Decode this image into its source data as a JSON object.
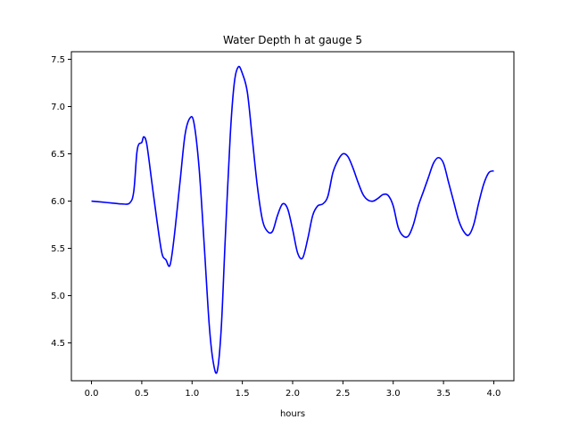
{
  "chart_data": {
    "type": "line",
    "title": "Water Depth h at gauge 5",
    "xlabel": "hours",
    "ylabel": "",
    "xlim": [
      -0.2,
      4.2
    ],
    "ylim": [
      4.1,
      7.58
    ],
    "xticks": [
      0.0,
      0.5,
      1.0,
      1.5,
      2.0,
      2.5,
      3.0,
      3.5,
      4.0
    ],
    "xtick_labels": [
      "0.0",
      "0.5",
      "1.0",
      "1.5",
      "2.0",
      "2.5",
      "3.0",
      "3.5",
      "4.0"
    ],
    "yticks": [
      4.5,
      5.0,
      5.5,
      6.0,
      6.5,
      7.0,
      7.5
    ],
    "ytick_labels": [
      "4.5",
      "5.0",
      "5.5",
      "6.0",
      "6.5",
      "7.0",
      "7.5"
    ],
    "grid": false,
    "series": [
      {
        "color": "#0000ff",
        "x": [
          0.0,
          0.1,
          0.2,
          0.3,
          0.38,
          0.42,
          0.45,
          0.47,
          0.5,
          0.52,
          0.55,
          0.6,
          0.65,
          0.7,
          0.74,
          0.78,
          0.82,
          0.88,
          0.93,
          0.98,
          1.02,
          1.07,
          1.12,
          1.17,
          1.21,
          1.25,
          1.29,
          1.33,
          1.38,
          1.42,
          1.46,
          1.5,
          1.55,
          1.6,
          1.65,
          1.7,
          1.75,
          1.8,
          1.85,
          1.9,
          1.95,
          2.0,
          2.05,
          2.1,
          2.15,
          2.2,
          2.25,
          2.3,
          2.35,
          2.4,
          2.45,
          2.5,
          2.55,
          2.6,
          2.65,
          2.7,
          2.75,
          2.8,
          2.85,
          2.9,
          2.95,
          3.0,
          3.05,
          3.1,
          3.15,
          3.2,
          3.25,
          3.3,
          3.35,
          3.4,
          3.45,
          3.5,
          3.55,
          3.6,
          3.65,
          3.7,
          3.75,
          3.8,
          3.85,
          3.9,
          3.95,
          4.0
        ],
        "y": [
          6.0,
          5.99,
          5.98,
          5.97,
          5.98,
          6.1,
          6.5,
          6.6,
          6.62,
          6.68,
          6.6,
          6.2,
          5.8,
          5.45,
          5.38,
          5.32,
          5.6,
          6.2,
          6.7,
          6.88,
          6.82,
          6.35,
          5.55,
          4.7,
          4.3,
          4.2,
          4.65,
          5.6,
          6.7,
          7.25,
          7.42,
          7.35,
          7.15,
          6.65,
          6.15,
          5.8,
          5.68,
          5.68,
          5.85,
          5.97,
          5.92,
          5.7,
          5.45,
          5.4,
          5.6,
          5.85,
          5.95,
          5.97,
          6.05,
          6.3,
          6.43,
          6.5,
          6.47,
          6.35,
          6.2,
          6.07,
          6.01,
          6.0,
          6.03,
          6.07,
          6.06,
          5.95,
          5.72,
          5.63,
          5.63,
          5.75,
          5.95,
          6.1,
          6.25,
          6.4,
          6.46,
          6.4,
          6.2,
          6.0,
          5.8,
          5.68,
          5.64,
          5.75,
          5.98,
          6.18,
          6.3,
          6.32
        ]
      }
    ]
  }
}
